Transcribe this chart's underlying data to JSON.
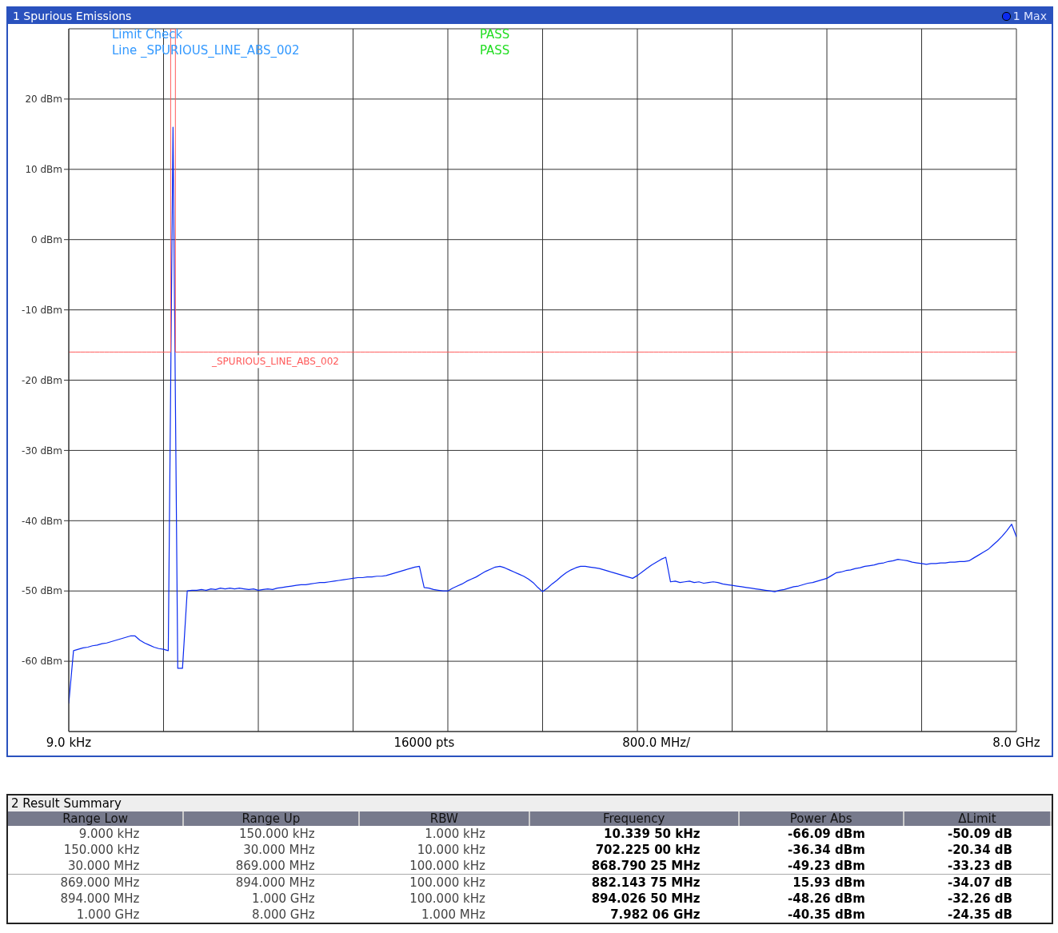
{
  "chart_data": [
    {
      "type": "line",
      "title": "1 Spurious Emissions",
      "annotations": [
        "Limit Check",
        "PASS",
        "Line _SPURIOUS_LINE_ABS_002",
        "PASS"
      ],
      "categories": [
        "9.0 kHz",
        null,
        null,
        null,
        null,
        null,
        null,
        null,
        null,
        null,
        null,
        null,
        null,
        null,
        null,
        null,
        null,
        null,
        null,
        null,
        null,
        null,
        null,
        null,
        null,
        null,
        null,
        null,
        null,
        null,
        null,
        null,
        null,
        null,
        null,
        null,
        null,
        null,
        null,
        null,
        null,
        null,
        null,
        null,
        null,
        null,
        null,
        null,
        null,
        null,
        null,
        null,
        null,
        null,
        null,
        null,
        null,
        null,
        null,
        null,
        null,
        null,
        null,
        null,
        null,
        null,
        null,
        null,
        null,
        null,
        null,
        null,
        null,
        null,
        null,
        "16000 pts",
        null,
        null,
        null,
        null,
        null,
        null,
        null,
        null,
        null,
        null,
        null,
        null,
        null,
        null,
        null,
        null,
        null,
        null,
        null,
        null,
        null,
        null,
        null,
        null,
        null,
        null,
        null,
        null,
        null,
        null,
        null,
        null,
        null,
        null,
        null,
        null,
        null,
        null,
        null,
        null,
        null,
        null,
        null,
        null,
        null,
        null,
        null,
        null,
        "800.0 MHz/",
        null,
        null,
        null,
        null,
        null,
        null,
        null,
        null,
        null,
        null,
        null,
        null,
        null,
        null,
        null,
        null,
        null,
        null,
        null,
        null,
        null,
        null,
        null,
        null,
        null,
        null,
        null,
        null,
        null,
        null,
        null,
        null,
        null,
        null,
        null,
        null,
        null,
        null,
        null,
        null,
        null,
        null,
        null,
        null,
        null,
        null,
        null,
        null,
        null,
        null,
        null,
        null,
        null,
        null,
        null,
        null,
        null,
        null,
        null,
        null,
        null,
        null,
        null,
        null,
        null,
        null,
        null,
        null,
        null,
        null,
        null,
        null,
        null,
        null,
        null,
        "8.0 GHz"
      ],
      "series": [
        {
          "name": "1 Max",
          "color": "#0a2af0",
          "values": [
            -66,
            -58.5,
            -58.3,
            -58.1,
            -58,
            -57.8,
            -57.7,
            -57.5,
            -57.4,
            -57.2,
            -57,
            -56.8,
            -56.6,
            -56.4,
            -56.4,
            -57,
            -57.4,
            -57.7,
            -58,
            -58.2,
            -58.3,
            -58.5,
            16,
            -61,
            -61,
            -50,
            -49.9,
            -49.9,
            -49.8,
            -49.9,
            -49.7,
            -49.8,
            -49.6,
            -49.7,
            -49.6,
            -49.7,
            -49.6,
            -49.7,
            -49.8,
            -49.7,
            -49.9,
            -49.8,
            -49.7,
            -49.8,
            -49.6,
            -49.5,
            -49.4,
            -49.3,
            -49.2,
            -49.1,
            -49.1,
            -49,
            -48.9,
            -48.8,
            -48.8,
            -48.7,
            -48.6,
            -48.5,
            -48.4,
            -48.3,
            -48.2,
            -48.1,
            -48.1,
            -48,
            -48,
            -47.9,
            -47.9,
            -47.8,
            -47.6,
            -47.4,
            -47.2,
            -47,
            -46.8,
            -46.6,
            -46.5,
            -49.5,
            -49.6,
            -49.8,
            -49.9,
            -50,
            -50,
            -49.6,
            -49.3,
            -49,
            -48.6,
            -48.3,
            -48,
            -47.6,
            -47.2,
            -46.9,
            -46.6,
            -46.5,
            -46.7,
            -47,
            -47.3,
            -47.6,
            -47.9,
            -48.3,
            -48.8,
            -49.5,
            -50.1,
            -49.6,
            -49,
            -48.5,
            -47.9,
            -47.4,
            -47,
            -46.7,
            -46.5,
            -46.5,
            -46.6,
            -46.7,
            -46.8,
            -47,
            -47.2,
            -47.4,
            -47.6,
            -47.8,
            -48,
            -48.2,
            -47.8,
            -47.3,
            -46.8,
            -46.3,
            -45.9,
            -45.5,
            -45.2,
            -48.7,
            -48.6,
            -48.8,
            -48.7,
            -48.6,
            -48.8,
            -48.7,
            -48.9,
            -48.8,
            -48.7,
            -48.8,
            -49,
            -49.1,
            -49.2,
            -49.3,
            -49.4,
            -49.5,
            -49.6,
            -49.7,
            -49.8,
            -49.9,
            -50,
            -50.1,
            -49.9,
            -49.8,
            -49.6,
            -49.4,
            -49.3,
            -49.1,
            -48.9,
            -48.8,
            -48.6,
            -48.4,
            -48.2,
            -47.8,
            -47.4,
            -47.3,
            -47.1,
            -47,
            -46.8,
            -46.7,
            -46.5,
            -46.4,
            -46.3,
            -46.1,
            -46,
            -45.8,
            -45.7,
            -45.5,
            -45.6,
            -45.7,
            -45.9,
            -46,
            -46.1,
            -46.2,
            -46.1,
            -46.1,
            -46,
            -46,
            -45.9,
            -45.9,
            -45.8,
            -45.8,
            -45.7,
            -45.3,
            -44.9,
            -44.5,
            -44.1,
            -43.5,
            -42.9,
            -42.2,
            -41.4,
            -40.5,
            -42.3
          ]
        },
        {
          "name": "_SPURIOUS_LINE_ABS_002",
          "type": "step",
          "color": "#ff5a5a",
          "values": [
            -16,
            -16,
            -16,
            -16,
            -16,
            -16,
            -16,
            -16,
            -16,
            -16,
            -16,
            -16,
            -16,
            -16,
            -16,
            -16,
            -16,
            -16,
            -16,
            -16,
            -16,
            -16,
            30,
            -16,
            -16,
            -16,
            -16,
            -16,
            -16,
            -16,
            -16,
            -16,
            -16,
            -16,
            -16,
            -16,
            -16,
            -16,
            -16,
            -16,
            -16,
            -16,
            -16,
            -16,
            -16,
            -16,
            -16,
            -16,
            -16,
            -16,
            -16,
            -16,
            -16,
            -16,
            -16,
            -16,
            -16,
            -16,
            -16,
            -16,
            -16,
            -16,
            -16,
            -16,
            -16,
            -16,
            -16,
            -16,
            -16,
            -16,
            -16,
            -16,
            -16,
            -16,
            -16,
            -16,
            -16,
            -16,
            -16,
            -16,
            -16,
            -16,
            -16,
            -16,
            -16,
            -16,
            -16,
            -16,
            -16,
            -16,
            -16,
            -16,
            -16,
            -16,
            -16,
            -16,
            -16,
            -16,
            -16,
            -16,
            -16,
            -16,
            -16,
            -16,
            -16,
            -16,
            -16,
            -16,
            -16,
            -16,
            -16,
            -16,
            -16,
            -16,
            -16,
            -16,
            -16,
            -16,
            -16,
            -16,
            -16,
            -16,
            -16,
            -16,
            -16,
            -16,
            -16,
            -16,
            -16,
            -16,
            -16,
            -16,
            -16,
            -16,
            -16,
            -16,
            -16,
            -16,
            -16,
            -16,
            -16,
            -16,
            -16,
            -16,
            -16,
            -16,
            -16,
            -16,
            -16,
            -16,
            -16,
            -16,
            -16,
            -16,
            -16,
            -16,
            -16,
            -16,
            -16,
            -16,
            -16,
            -16,
            -16,
            -16,
            -16,
            -16,
            -16,
            -16,
            -16,
            -16,
            -16,
            -16,
            -16,
            -16,
            -16,
            -16,
            -16,
            -16,
            -16,
            -16,
            -16,
            -16,
            -16,
            -16,
            -16,
            -16,
            -16,
            -16,
            -16,
            -16,
            -16,
            -16,
            -16,
            -16,
            -16,
            -16,
            -16,
            -16,
            -16,
            -16,
            -16
          ]
        }
      ],
      "ylim": [
        -70,
        30
      ],
      "yticks": [
        {
          "value": -60,
          "label": "-60 dBm"
        },
        {
          "value": -50,
          "label": "-50 dBm"
        },
        {
          "value": -40,
          "label": "-40 dBm"
        },
        {
          "value": -30,
          "label": "-30 dBm"
        },
        {
          "value": -20,
          "label": "-20 dBm"
        },
        {
          "value": -10,
          "label": "-10 dBm"
        },
        {
          "value": 0,
          "label": "0 dBm"
        },
        {
          "value": 10,
          "label": "10 dBm"
        },
        {
          "value": 20,
          "label": "20 dBm"
        }
      ],
      "grid": true,
      "legend": "top right"
    },
    {
      "type": "other",
      "title": "2 Result Summary",
      "annotations": [
        "Range Low",
        "Range Up",
        "RBW",
        "Frequency",
        "Power Abs",
        "ΔLimit",
        "9.000 kHz",
        "150.000 kHz",
        "1.000 kHz",
        "10.339 50 kHz",
        "-66.09 dBm",
        "-50.09 dB",
        "150.000 kHz",
        "30.000 MHz",
        "10.000 kHz",
        "702.225 00 kHz",
        "-36.34 dBm",
        "-20.34 dB",
        "30.000 MHz",
        "869.000 MHz",
        "100.000 kHz",
        "868.790 25 MHz",
        "-49.23 dBm",
        "-33.23 dB",
        "869.000 MHz",
        "894.000 MHz",
        "100.000 kHz",
        "882.143 75 MHz",
        "15.93 dBm",
        "-34.07 dB",
        "894.000 MHz",
        "1.000 GHz",
        "100.000 kHz",
        "894.026 50 MHz",
        "-48.26 dBm",
        "-32.26 dB",
        "1.000 GHz",
        "8.000 GHz",
        "1.000 MHz",
        "7.982 06 GHz",
        "-40.35 dBm",
        "-24.35 dB"
      ]
    }
  ]
}
